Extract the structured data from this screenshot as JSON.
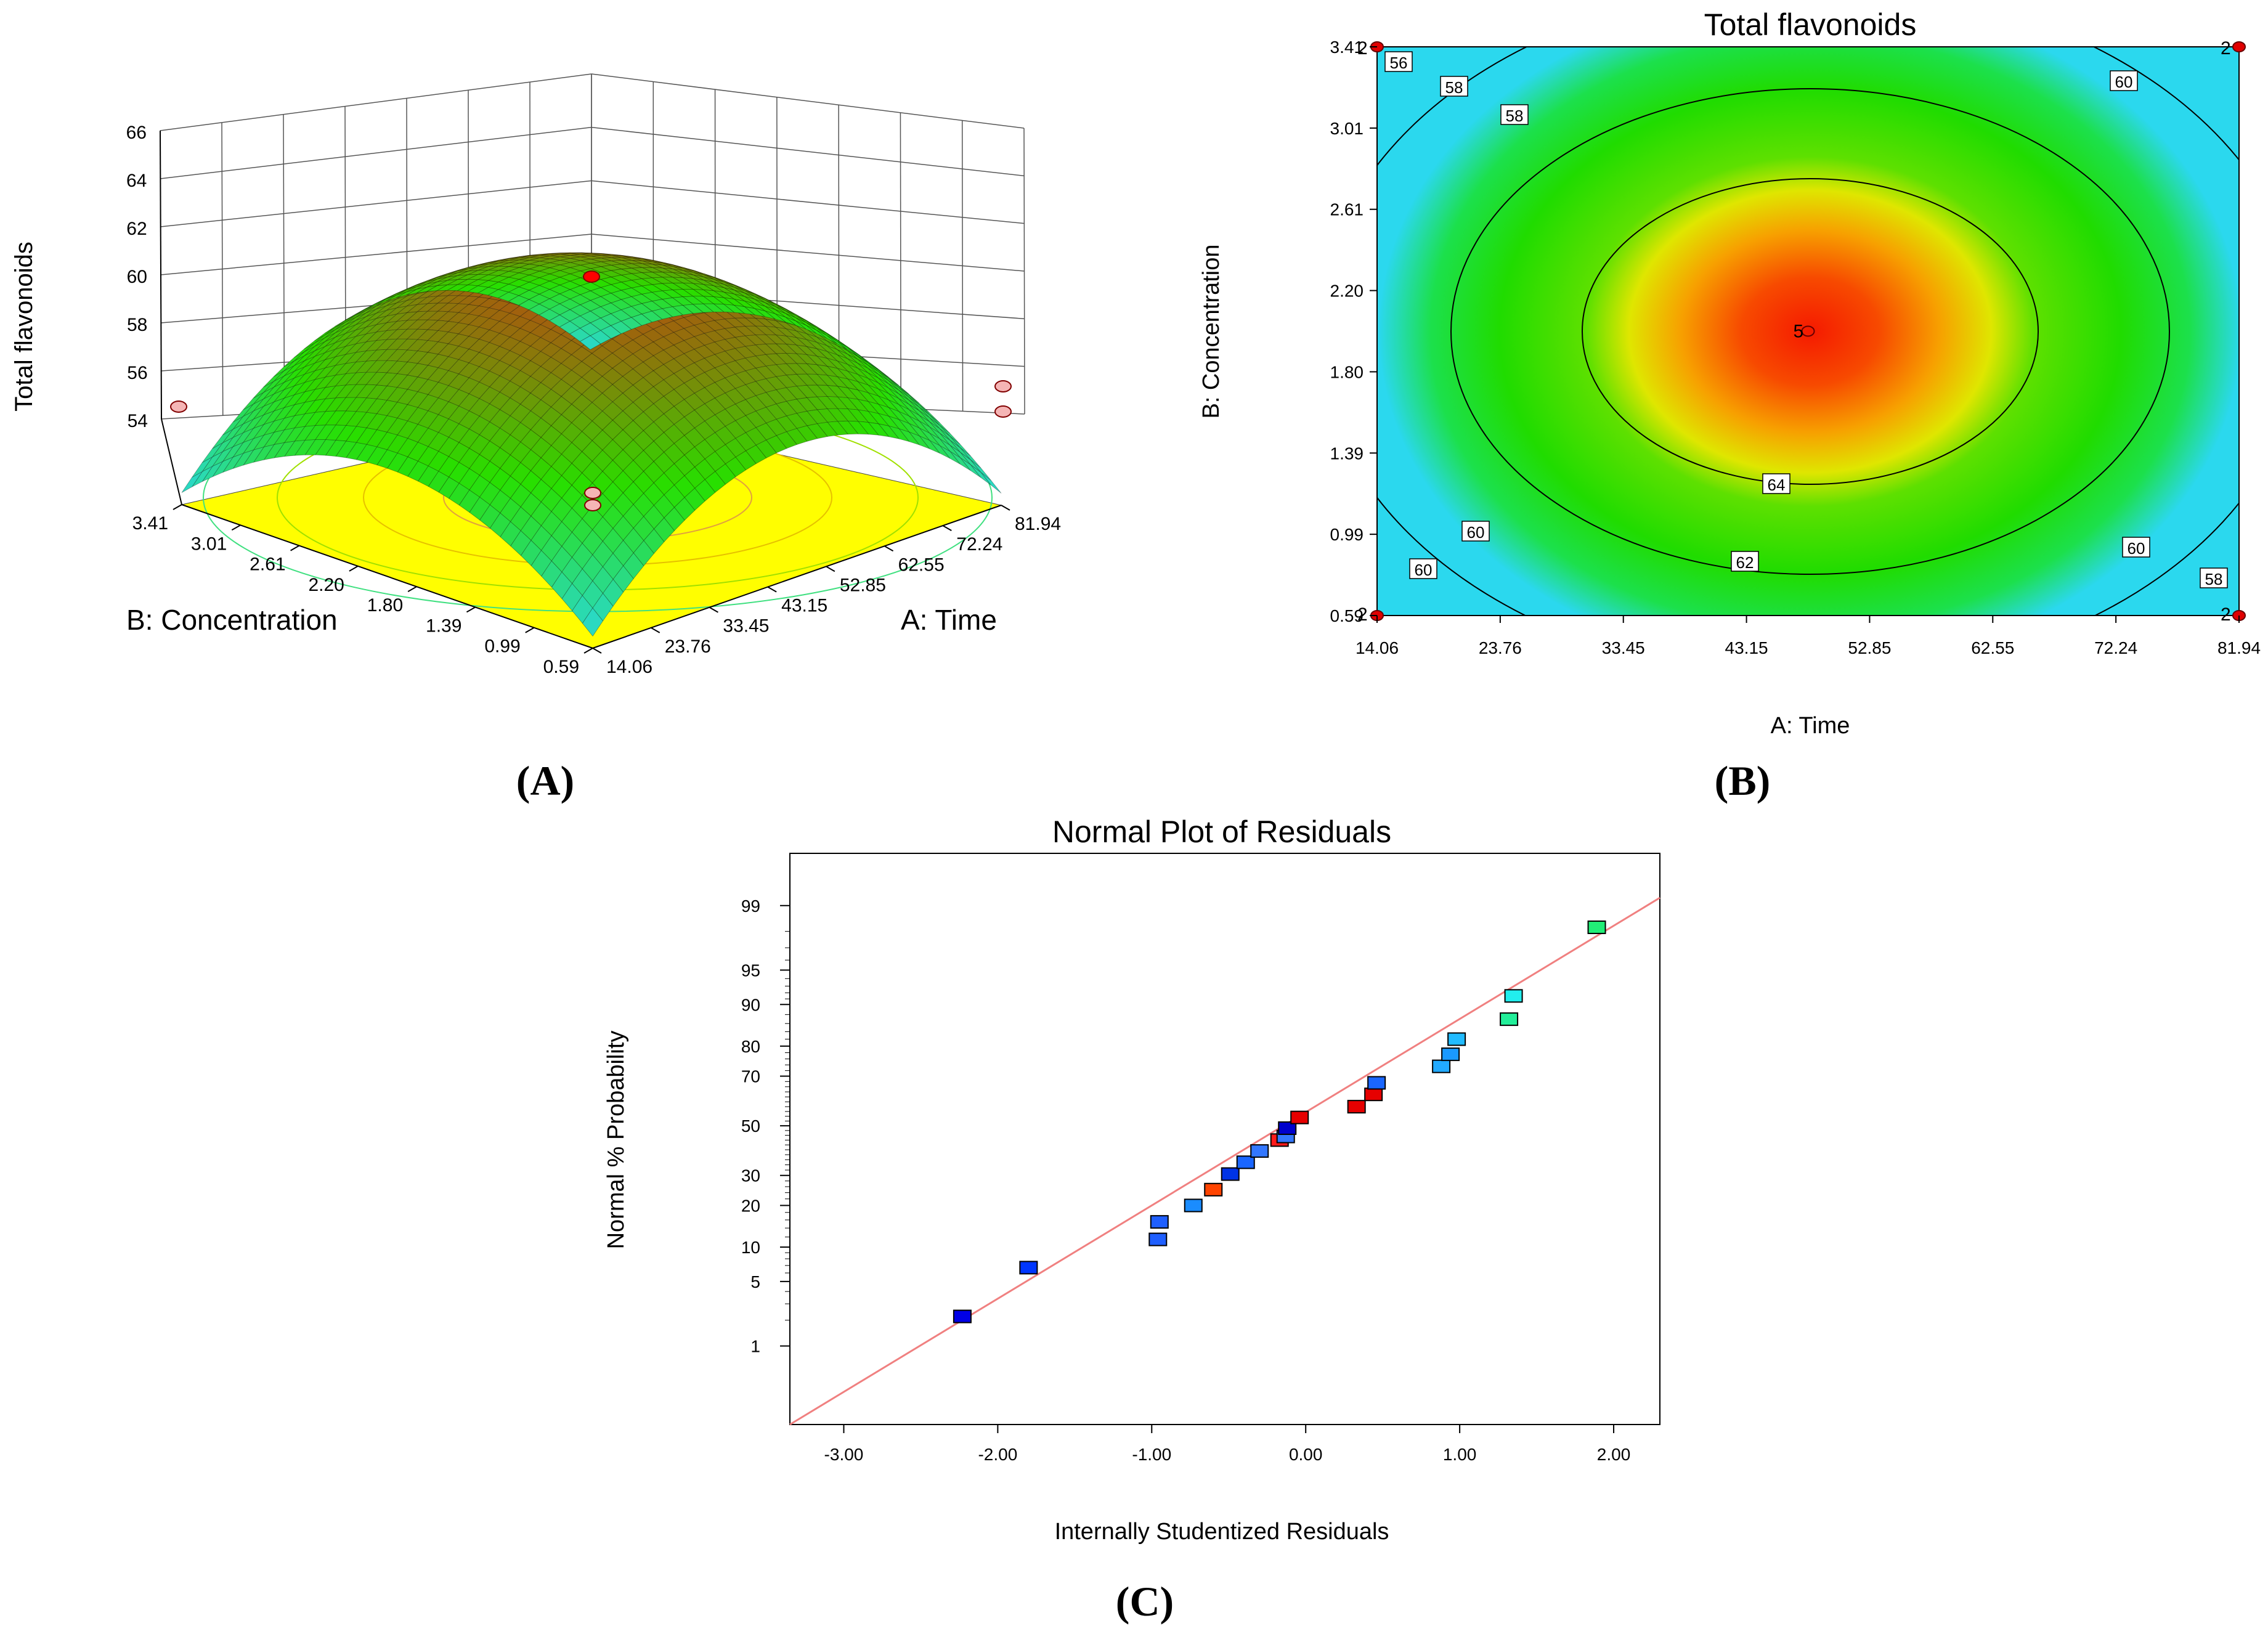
{
  "colors": {
    "low": "#2bd8ee",
    "mid": "#28df00",
    "high": "#f51a00",
    "contour_line": "#000000",
    "floor": "#fffe00",
    "fit_line": "#f08080",
    "design_point": "#ff0000"
  },
  "panels": {
    "A": {
      "label": "(A)",
      "letter": "A"
    },
    "B": {
      "label": "(B)",
      "letter": "B"
    },
    "C": {
      "label": "(C)",
      "letter": "C"
    }
  },
  "chart_data": [
    {
      "id": "A",
      "type": "surface3d",
      "title": "",
      "zlabel": "Total flavonoids",
      "xlabel": "A: Time",
      "ylabel": "B: Concentration",
      "x_ticks": [
        "14.06",
        "23.76",
        "33.45",
        "43.15",
        "52.85",
        "62.55",
        "72.24",
        "81.94"
      ],
      "y_ticks": [
        "0.59",
        "0.99",
        "1.39",
        "1.80",
        "2.20",
        "2.61",
        "3.01",
        "3.41"
      ],
      "z_ticks": [
        "54",
        "56",
        "58",
        "60",
        "62",
        "64",
        "66"
      ],
      "xlim": [
        14.06,
        81.94
      ],
      "ylim": [
        0.59,
        3.41
      ],
      "zlim": [
        54,
        66
      ],
      "model": {
        "peak": 65.4,
        "center_x": 48,
        "center_y": 2.0,
        "edge_x_drop": 6.0,
        "edge_y_drop": 4.8
      },
      "grid": true
    },
    {
      "id": "B",
      "type": "contour",
      "title": "Total flavonoids",
      "xlabel": "A: Time",
      "ylabel": "B: Concentration",
      "x_ticks": [
        "14.06",
        "23.76",
        "33.45",
        "43.15",
        "52.85",
        "62.55",
        "72.24",
        "81.94"
      ],
      "y_ticks": [
        "0.59",
        "0.99",
        "1.39",
        "1.80",
        "2.20",
        "2.61",
        "3.01",
        "3.41"
      ],
      "xlim": [
        14.06,
        81.94
      ],
      "ylim": [
        0.59,
        3.41
      ],
      "contour_levels": [
        56,
        58,
        60,
        62,
        64
      ],
      "contour_labels": [
        "56",
        "58",
        "58",
        "60",
        "60",
        "60",
        "60",
        "62",
        "64",
        "58"
      ],
      "design_points": [
        {
          "x": 14.06,
          "y": 0.59,
          "count": "2"
        },
        {
          "x": 81.94,
          "y": 0.59,
          "count": "2"
        },
        {
          "x": 14.06,
          "y": 3.41,
          "count": "2"
        },
        {
          "x": 81.94,
          "y": 3.41,
          "count": "2"
        },
        {
          "x": 48.0,
          "y": 2.0,
          "count": "5"
        }
      ]
    },
    {
      "id": "C",
      "type": "scatter",
      "title": "Normal Plot of Residuals",
      "xlabel": "Internally Studentized Residuals",
      "ylabel": "Normal % Probability",
      "x_ticks": [
        "-3.00",
        "-2.00",
        "-1.00",
        "0.00",
        "1.00",
        "2.00"
      ],
      "x_tick_values": [
        -3,
        -2,
        -1,
        0,
        1,
        2
      ],
      "y_ticks": [
        "1",
        "5",
        "10",
        "20",
        "30",
        "50",
        "70",
        "80",
        "90",
        "95",
        "99"
      ],
      "y_tick_values": [
        1,
        5,
        10,
        20,
        30,
        50,
        70,
        80,
        90,
        95,
        99
      ],
      "xlim": [
        -3.35,
        2.3
      ],
      "fit_line": [
        [
          -3.35,
          0.1
        ],
        [
          2.3,
          99.7
        ]
      ],
      "points": [
        {
          "x": -2.23,
          "p": 2.2,
          "color": "#0000e6"
        },
        {
          "x": -1.8,
          "p": 6.7,
          "color": "#0036ff"
        },
        {
          "x": -0.96,
          "p": 11.5,
          "color": "#1f5fff"
        },
        {
          "x": -0.95,
          "p": 15.5,
          "color": "#1f5fff"
        },
        {
          "x": -0.73,
          "p": 20.0,
          "color": "#1a8cff"
        },
        {
          "x": -0.6,
          "p": 25.0,
          "color": "#ff4400"
        },
        {
          "x": -0.49,
          "p": 30.5,
          "color": "#0033e6"
        },
        {
          "x": -0.39,
          "p": 35.0,
          "color": "#1a66ff"
        },
        {
          "x": -0.3,
          "p": 39.5,
          "color": "#3377ff"
        },
        {
          "x": -0.17,
          "p": 44.0,
          "color": "#ff1a1a"
        },
        {
          "x": -0.13,
          "p": 45.5,
          "color": "#3377ff"
        },
        {
          "x": -0.12,
          "p": 49.0,
          "color": "#0000cc"
        },
        {
          "x": -0.04,
          "p": 53.5,
          "color": "#e60000"
        },
        {
          "x": 0.33,
          "p": 58.0,
          "color": "#e60000"
        },
        {
          "x": 0.44,
          "p": 63.0,
          "color": "#e60000"
        },
        {
          "x": 0.46,
          "p": 67.5,
          "color": "#1a66ff"
        },
        {
          "x": 0.88,
          "p": 73.5,
          "color": "#22aaff"
        },
        {
          "x": 0.94,
          "p": 77.5,
          "color": "#1a99ff"
        },
        {
          "x": 0.98,
          "p": 82.0,
          "color": "#22bbff"
        },
        {
          "x": 1.32,
          "p": 87.0,
          "color": "#22ee99"
        },
        {
          "x": 1.35,
          "p": 91.5,
          "color": "#22eeee"
        },
        {
          "x": 1.89,
          "p": 98.2,
          "color": "#22ee77"
        }
      ]
    }
  ]
}
